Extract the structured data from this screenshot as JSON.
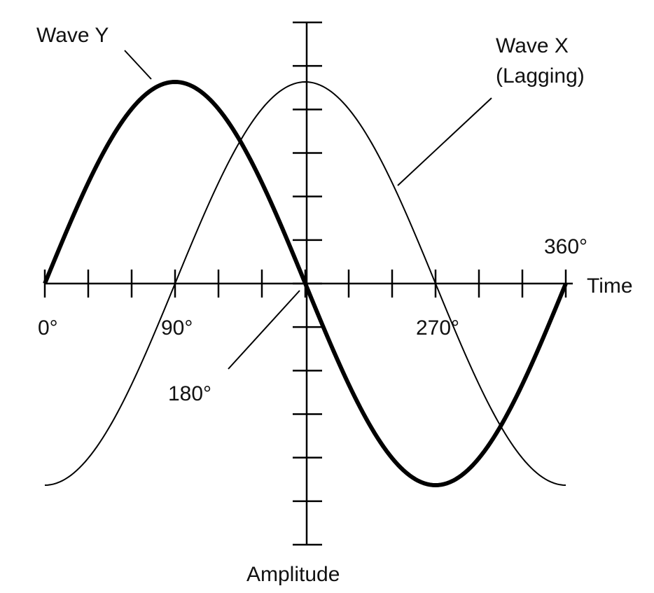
{
  "labels": {
    "wave_y": "Wave Y",
    "wave_x_line1": "Wave X",
    "wave_x_line2": "(Lagging)",
    "deg_0": "0°",
    "deg_90": "90°",
    "deg_180": "180°",
    "deg_270": "270°",
    "deg_360": "360°",
    "time_axis": "Time",
    "amplitude_axis": "Amplitude"
  },
  "waves": [
    {
      "name": "Wave Y",
      "function": "sine",
      "phase_shift_deg": 0,
      "peak_amplitude": 1,
      "emphasis": "bold"
    },
    {
      "name": "Wave X",
      "function": "sine",
      "phase_shift_deg": 90,
      "peak_amplitude": 1,
      "emphasis": "thin"
    }
  ],
  "time_range_deg": [
    0,
    360
  ],
  "time_tick_step_deg": 30,
  "colors": {
    "line": "#000000",
    "text": "#111111",
    "background": "#ffffff"
  }
}
